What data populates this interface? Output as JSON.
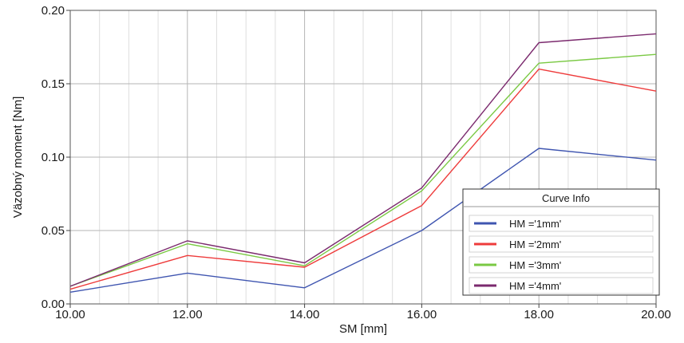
{
  "chart_data": {
    "type": "line",
    "xlabel": "SM [mm]",
    "ylabel": "Väzobný moment [Nm]",
    "xlim": [
      10,
      20
    ],
    "ylim": [
      0,
      0.2
    ],
    "x_ticks": [
      "10.00",
      "12.00",
      "14.00",
      "16.00",
      "18.00",
      "20.00"
    ],
    "y_ticks": [
      "0.00",
      "0.05",
      "0.10",
      "0.15",
      "0.20"
    ],
    "x": [
      10,
      12,
      14,
      16,
      18,
      20
    ],
    "grid": true,
    "legend": {
      "title": "Curve Info",
      "position": "bottom-right"
    },
    "series": [
      {
        "name": "HM ='1mm'",
        "color": "#3f55b0",
        "values": [
          0.008,
          0.021,
          0.011,
          0.05,
          0.106,
          0.098
        ]
      },
      {
        "name": "HM ='2mm'",
        "color": "#ee3b3b",
        "values": [
          0.01,
          0.033,
          0.025,
          0.067,
          0.16,
          0.145
        ]
      },
      {
        "name": "HM ='3mm'",
        "color": "#7ac943",
        "values": [
          0.012,
          0.041,
          0.026,
          0.077,
          0.164,
          0.17
        ]
      },
      {
        "name": "HM ='4mm'",
        "color": "#7b2a6e",
        "values": [
          0.012,
          0.043,
          0.028,
          0.079,
          0.178,
          0.184
        ]
      }
    ]
  }
}
